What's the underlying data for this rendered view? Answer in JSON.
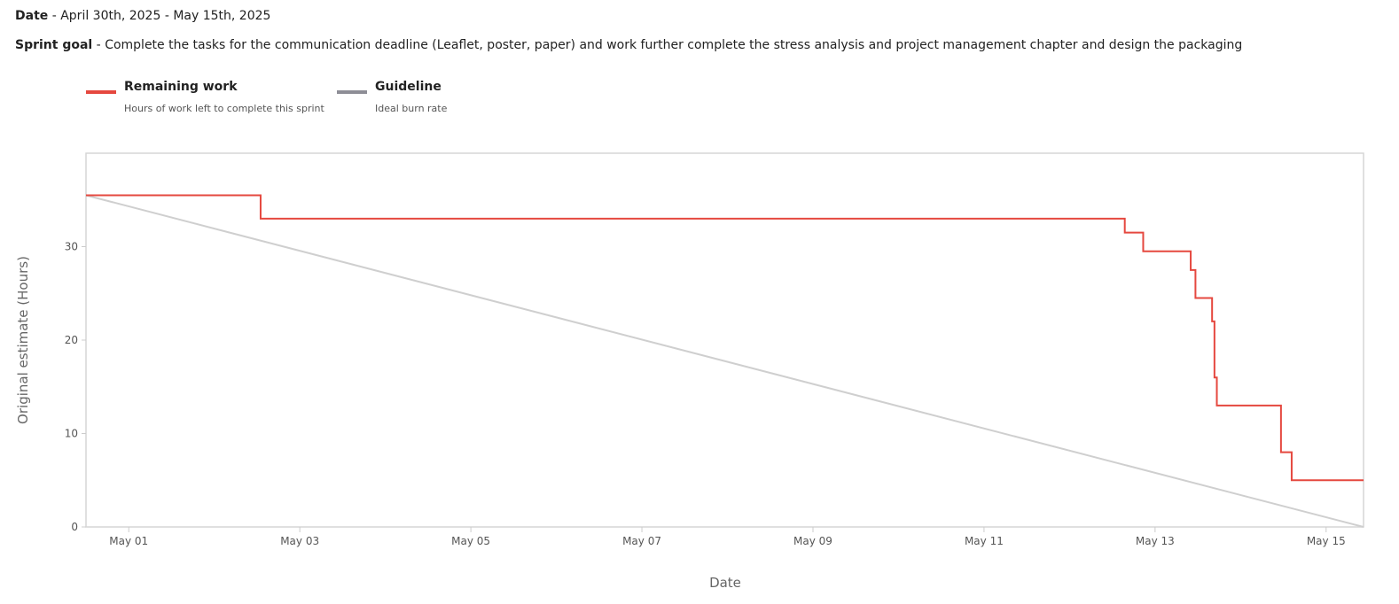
{
  "header": {
    "date_label": "Date",
    "date_value": "April 30th, 2025 - May 15th, 2025",
    "goal_label": "Sprint goal",
    "goal_value": "Complete the tasks for the communication deadline (Leaflet, poster, paper) and work further complete the stress analysis and project management chapter and design the packaging",
    "separator": " - "
  },
  "chart_data": {
    "type": "line",
    "xlabel": "Date",
    "ylabel": "Original estimate (Hours)",
    "xlim": [
      "2025-04-30T12:00",
      "2025-05-15T10:30"
    ],
    "ylim": [
      0,
      40
    ],
    "grid": false,
    "legend_placement": "top-left",
    "x_ticks": [
      {
        "date": "2025-05-01",
        "label": "May 01"
      },
      {
        "date": "2025-05-03",
        "label": "May 03"
      },
      {
        "date": "2025-05-05",
        "label": "May 05"
      },
      {
        "date": "2025-05-07",
        "label": "May 07"
      },
      {
        "date": "2025-05-09",
        "label": "May 09"
      },
      {
        "date": "2025-05-11",
        "label": "May 11"
      },
      {
        "date": "2025-05-13",
        "label": "May 13"
      },
      {
        "date": "2025-05-15",
        "label": "May 15"
      }
    ],
    "y_ticks": [
      0,
      10,
      20,
      30
    ],
    "series": [
      {
        "name": "Remaining work",
        "description": "Hours of work left to complete this sprint",
        "color": "#e5483f",
        "step": true,
        "points": [
          {
            "x": "2025-04-30T12:00",
            "y": 35.5
          },
          {
            "x": "2025-05-02T13:00",
            "y": 33
          },
          {
            "x": "2025-05-12T15:30",
            "y": 31.5
          },
          {
            "x": "2025-05-12T20:40",
            "y": 29.5
          },
          {
            "x": "2025-05-13T10:00",
            "y": 27.5
          },
          {
            "x": "2025-05-13T11:20",
            "y": 24.5
          },
          {
            "x": "2025-05-13T16:00",
            "y": 22
          },
          {
            "x": "2025-05-13T16:40",
            "y": 16
          },
          {
            "x": "2025-05-13T17:20",
            "y": 13
          },
          {
            "x": "2025-05-14T11:20",
            "y": 8
          },
          {
            "x": "2025-05-14T14:20",
            "y": 5
          },
          {
            "x": "2025-05-15T10:30",
            "y": 5
          }
        ]
      },
      {
        "name": "Guideline",
        "description": "Ideal burn rate",
        "color": "#8e8e96",
        "plot_color": "#cfcfcf",
        "points": [
          {
            "x": "2025-04-30T12:00",
            "y": 35.5
          },
          {
            "x": "2025-05-15T10:30",
            "y": 0
          }
        ]
      }
    ]
  }
}
